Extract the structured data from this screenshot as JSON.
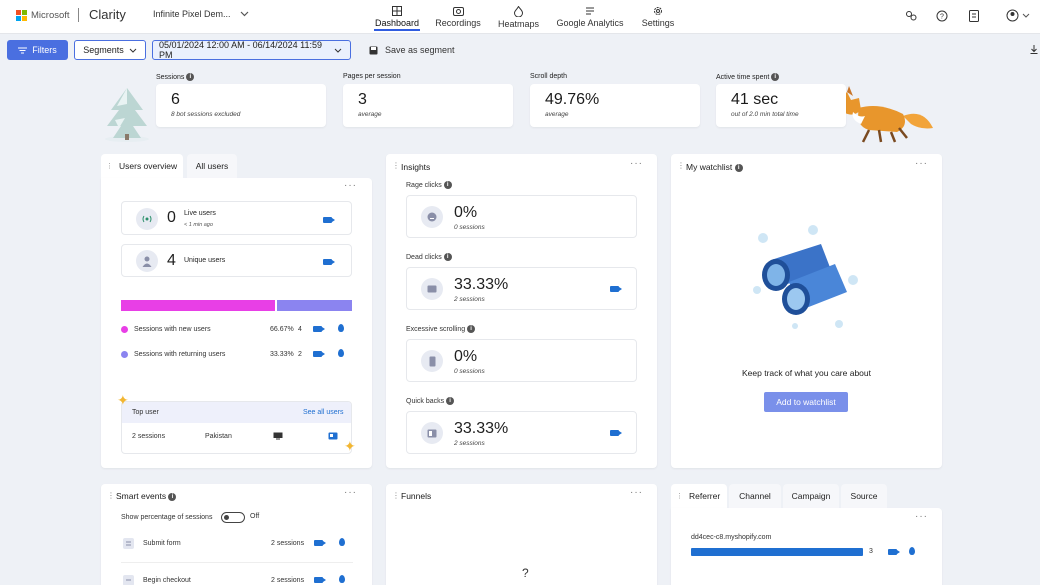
{
  "header": {
    "brand": "Microsoft",
    "product": "Clarity",
    "project": "Infinite Pixel Dem...",
    "nav": [
      {
        "label": "Dashboard",
        "icon": "dashboard-icon"
      },
      {
        "label": "Recordings",
        "icon": "recordings-icon"
      },
      {
        "label": "Heatmaps",
        "icon": "heatmaps-icon"
      },
      {
        "label": "Google Analytics",
        "icon": "google-analytics-icon"
      },
      {
        "label": "Settings",
        "icon": "settings-icon"
      }
    ],
    "active_nav": "Dashboard"
  },
  "toolbar": {
    "filters_label": "Filters",
    "segments_label": "Segments",
    "date_range": "05/01/2024 12:00 AM - 06/14/2024 11:59 PM",
    "save_segment_label": "Save as segment"
  },
  "metrics": [
    {
      "label": "Sessions",
      "value": "6",
      "sub": "8 bot sessions excluded"
    },
    {
      "label": "Pages per session",
      "value": "3",
      "sub": "average"
    },
    {
      "label": "Scroll depth",
      "value": "49.76%",
      "sub": "average"
    },
    {
      "label": "Active time spent",
      "value": "41 sec",
      "sub": "out of 2.0 min total time"
    }
  ],
  "users_overview": {
    "title": "Users overview",
    "tab2": "All users",
    "live_users": {
      "value": "0",
      "label": "Live users",
      "sub": "< 1 min ago"
    },
    "unique_users": {
      "value": "4",
      "label": "Unique users"
    },
    "split": {
      "new_fraction": 0.6667,
      "new_color": "#e83fe6",
      "returning_color": "#8b84f0"
    },
    "rows": [
      {
        "label": "Sessions with new users",
        "pct": "66.67%",
        "count": "4"
      },
      {
        "label": "Sessions with returning users",
        "pct": "33.33%",
        "count": "2"
      }
    ],
    "top_user": {
      "title": "Top user",
      "link": "See all users",
      "sessions": "2 sessions",
      "country": "Pakistan"
    }
  },
  "insights": {
    "title": "Insights",
    "items": [
      {
        "label": "Rage clicks",
        "value": "0%",
        "sub": "0 sessions",
        "icon": "rage-face-icon"
      },
      {
        "label": "Dead clicks",
        "value": "33.33%",
        "sub": "2 sessions",
        "icon": "dead-click-icon"
      },
      {
        "label": "Excessive scrolling",
        "value": "0%",
        "sub": "0 sessions",
        "icon": "scroll-icon"
      },
      {
        "label": "Quick backs",
        "value": "33.33%",
        "sub": "2 sessions",
        "icon": "quick-back-icon"
      }
    ]
  },
  "watchlist": {
    "title": "My watchlist",
    "message": "Keep track of what you care about",
    "button": "Add to watchlist"
  },
  "smart_events": {
    "title": "Smart events",
    "toggle_label": "Show percentage of sessions",
    "toggle_state": "Off",
    "rows": [
      {
        "label": "Submit form",
        "sessions": "2 sessions"
      },
      {
        "label": "Begin checkout",
        "sessions": "2 sessions"
      }
    ]
  },
  "funnels": {
    "title": "Funnels",
    "placeholder": "?"
  },
  "referrer": {
    "tabs": [
      "Referrer",
      "Channel",
      "Campaign",
      "Source"
    ],
    "rows": [
      {
        "label": "dd4cec-c8.myshopify.com",
        "count": "3",
        "fraction": 1
      }
    ]
  },
  "colors": {
    "accent": "#2f5ce0",
    "link": "#1f6fd1",
    "filter_btn": "#4a6fe0"
  }
}
